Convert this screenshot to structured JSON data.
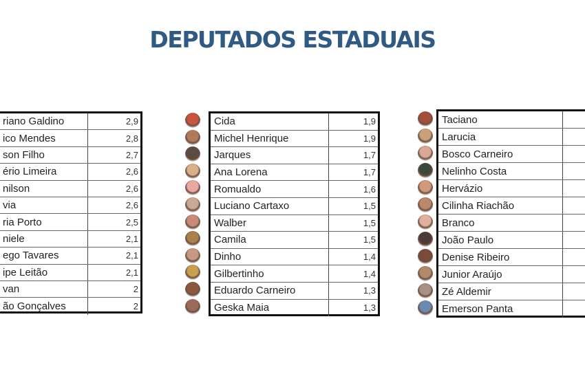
{
  "title": "DEPUTADOS ESTADUAIS",
  "tables": [
    {
      "rows": [
        {
          "name": "riano Galdino",
          "value": "2,9"
        },
        {
          "name": "ico Mendes",
          "value": "2,8"
        },
        {
          "name": "son Filho",
          "value": "2,7"
        },
        {
          "name": "ério Limeira",
          "value": "2,6"
        },
        {
          "name": "nilson",
          "value": "2,6"
        },
        {
          "name": "via",
          "value": "2,6"
        },
        {
          "name": "ria Porto",
          "value": "2,5"
        },
        {
          "name": "niele",
          "value": "2,1"
        },
        {
          "name": "ego Tavares",
          "value": "2,1"
        },
        {
          "name": "ipe Leitão",
          "value": "2,1"
        },
        {
          "name": "van",
          "value": "2"
        },
        {
          "name": "ão Gonçalves",
          "value": "2"
        }
      ]
    },
    {
      "rows": [
        {
          "name": "Cida",
          "value": "1,9"
        },
        {
          "name": "Michel Henrique",
          "value": "1,9"
        },
        {
          "name": "Jarques",
          "value": "1,7"
        },
        {
          "name": "Ana Lorena",
          "value": "1,7"
        },
        {
          "name": "Romualdo",
          "value": "1,6"
        },
        {
          "name": "Luciano Cartaxo",
          "value": "1,5"
        },
        {
          "name": "Walber",
          "value": "1,5"
        },
        {
          "name": "Camila",
          "value": "1,5"
        },
        {
          "name": "Dinho",
          "value": "1,4"
        },
        {
          "name": "Gilbertinho",
          "value": "1,4"
        },
        {
          "name": "Eduardo Carneiro",
          "value": "1,3"
        },
        {
          "name": "Geska Maia",
          "value": "1,3"
        }
      ],
      "avatar_colors": [
        "#c9553f",
        "#b07a5c",
        "#5a4a40",
        "#d9b08a",
        "#e8aaa0",
        "#c9a894",
        "#c98a7a",
        "#a8804a",
        "#c49a84",
        "#c8a050",
        "#8a5a3c",
        "#9c6a5a"
      ]
    },
    {
      "rows": [
        {
          "name": "Taciano",
          "value": ""
        },
        {
          "name": "Larucia",
          "value": ""
        },
        {
          "name": "Bosco Carneiro",
          "value": ""
        },
        {
          "name": "Nelinho Costa",
          "value": ""
        },
        {
          "name": "Hervázio",
          "value": ""
        },
        {
          "name": "Cilinha Riachão",
          "value": ""
        },
        {
          "name": "Branco",
          "value": ""
        },
        {
          "name": "João Paulo",
          "value": ""
        },
        {
          "name": "Denise Ribeiro",
          "value": ""
        },
        {
          "name": "Junior Araújo",
          "value": ""
        },
        {
          "name": "Zé Aldemir",
          "value": ""
        },
        {
          "name": "Emerson Panta",
          "value": ""
        }
      ],
      "avatar_colors": [
        "#a0503a",
        "#c8a07a",
        "#d8a898",
        "#3a4a3a",
        "#d09a7a",
        "#b88a6a",
        "#e0b0a0",
        "#4a3a3a",
        "#7a4a3a",
        "#b08a6a",
        "#a89088",
        "#6a8ab0"
      ]
    }
  ],
  "colors": {
    "title": "#2f5a83",
    "border": "#111111"
  }
}
